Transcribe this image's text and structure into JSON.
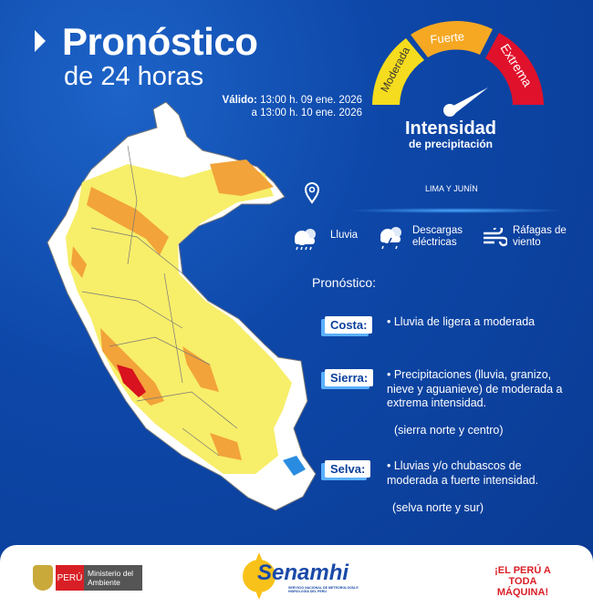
{
  "header": {
    "title": "Pronóstico",
    "subtitle": "de 24 horas",
    "valid_label": "Válido:",
    "valid_from": "13:00 h. 09 ene. 2026",
    "valid_to": "a 13:00 h. 10 ene. 2026"
  },
  "gauge": {
    "levels": [
      {
        "label": "Moderada",
        "color": "#f5dc1e"
      },
      {
        "label": "Fuerte",
        "color": "#f6a823"
      },
      {
        "label": "Extrema",
        "color": "#e0112b"
      }
    ],
    "title": "Intensidad",
    "subtitle": "de precipitación",
    "indicated_level": "Extrema"
  },
  "location": {
    "icon": "map-pin-icon",
    "text": "LIMA Y JUNÍN"
  },
  "legend": [
    {
      "icon": "rain-cloud-icon",
      "label": "Lluvia"
    },
    {
      "icon": "thunderstorm-icon",
      "label": "Descargas eléctricas"
    },
    {
      "icon": "wind-icon",
      "label": "Ráfagas de viento"
    }
  ],
  "forecast": {
    "title": "Pronóstico:",
    "regions": [
      {
        "name": "Costa:",
        "text": "• Lluvia de ligera a moderada"
      },
      {
        "name": "Sierra:",
        "text": "• Precipitaciones (lluvia, granizo, nieve y aguanieve) de moderada a extrema intensidad.",
        "note": "(sierra norte y centro)"
      },
      {
        "name": "Selva:",
        "text": "• Lluvias y/o chubascos de moderada a fuerte intensidad.",
        "note": "(selva norte y sur)"
      }
    ]
  },
  "map": {
    "colors": {
      "land": "#ffffff",
      "moderada": "#f7ee6a",
      "fuerte": "#f2a33a",
      "extrema": "#d8121f",
      "lake": "#2a8ce0"
    }
  },
  "footer": {
    "peru": "PERÚ",
    "ministry": "Ministerio del Ambiente",
    "senamhi": "Senamhi",
    "senamhi_sub": "SERVICIO NACIONAL DE METEOROLOGÍA E HIDROLOGÍA DEL PERÚ",
    "slogan": "¡EL PERÚ A TODA MÁQUINA!"
  }
}
